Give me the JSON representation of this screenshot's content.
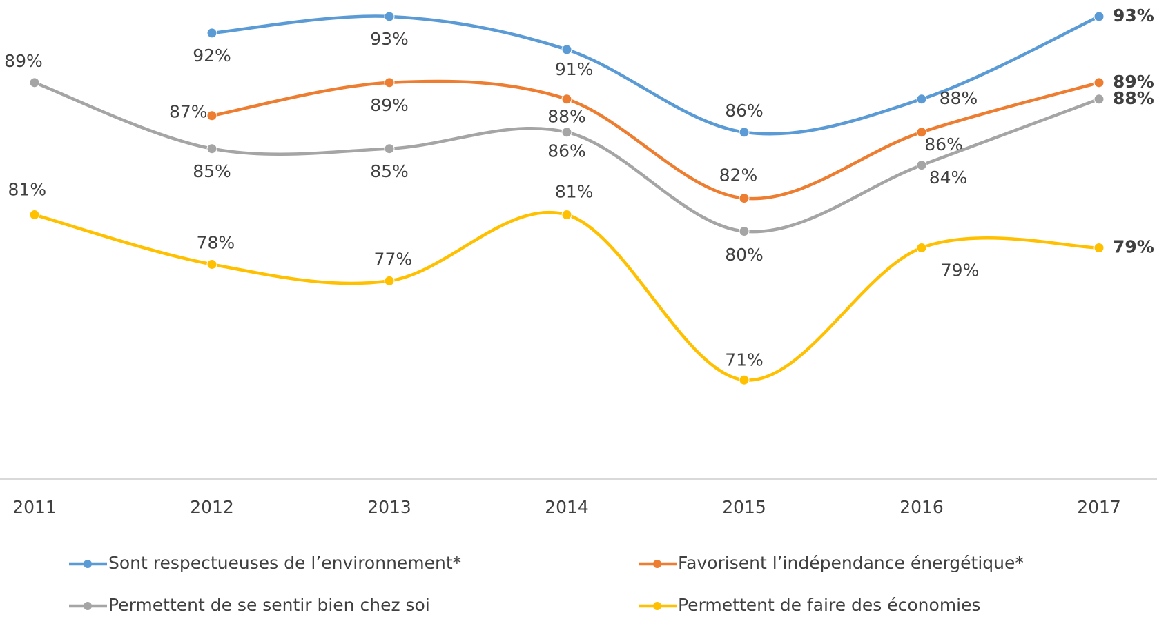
{
  "chart_data": {
    "type": "line",
    "categories": [
      "2011",
      "2012",
      "2013",
      "2014",
      "2015",
      "2016",
      "2017"
    ],
    "ylim": [
      65,
      94
    ],
    "series": [
      {
        "name": "Sont respectueuses de l’environnement*",
        "color": "#5b9bd5",
        "values": [
          null,
          92,
          93,
          91,
          86,
          88,
          93
        ],
        "value_labels": [
          null,
          "92%",
          "93%",
          "91%",
          "86%",
          "88%",
          "93%"
        ]
      },
      {
        "name": "Favorisent l’indépendance énergétique*",
        "color": "#ed7d31",
        "values": [
          null,
          87,
          89,
          88,
          82,
          86,
          89
        ],
        "value_labels": [
          null,
          "87%",
          "89%",
          "88%",
          "82%",
          "86%",
          "89%"
        ]
      },
      {
        "name": "Permettent de se sentir bien chez soi",
        "color": "#a5a5a5",
        "values": [
          89,
          85,
          85,
          86,
          80,
          84,
          88
        ],
        "value_labels": [
          "89%",
          "85%",
          "85%",
          "86%",
          "80%",
          "84%",
          "88%"
        ]
      },
      {
        "name": "Permettent de faire des économies",
        "color": "#ffc000",
        "values": [
          81,
          78,
          77,
          81,
          71,
          79,
          79
        ],
        "value_labels": [
          "81%",
          "78%",
          "77%",
          "81%",
          "71%",
          "79%",
          "79%"
        ]
      }
    ]
  }
}
